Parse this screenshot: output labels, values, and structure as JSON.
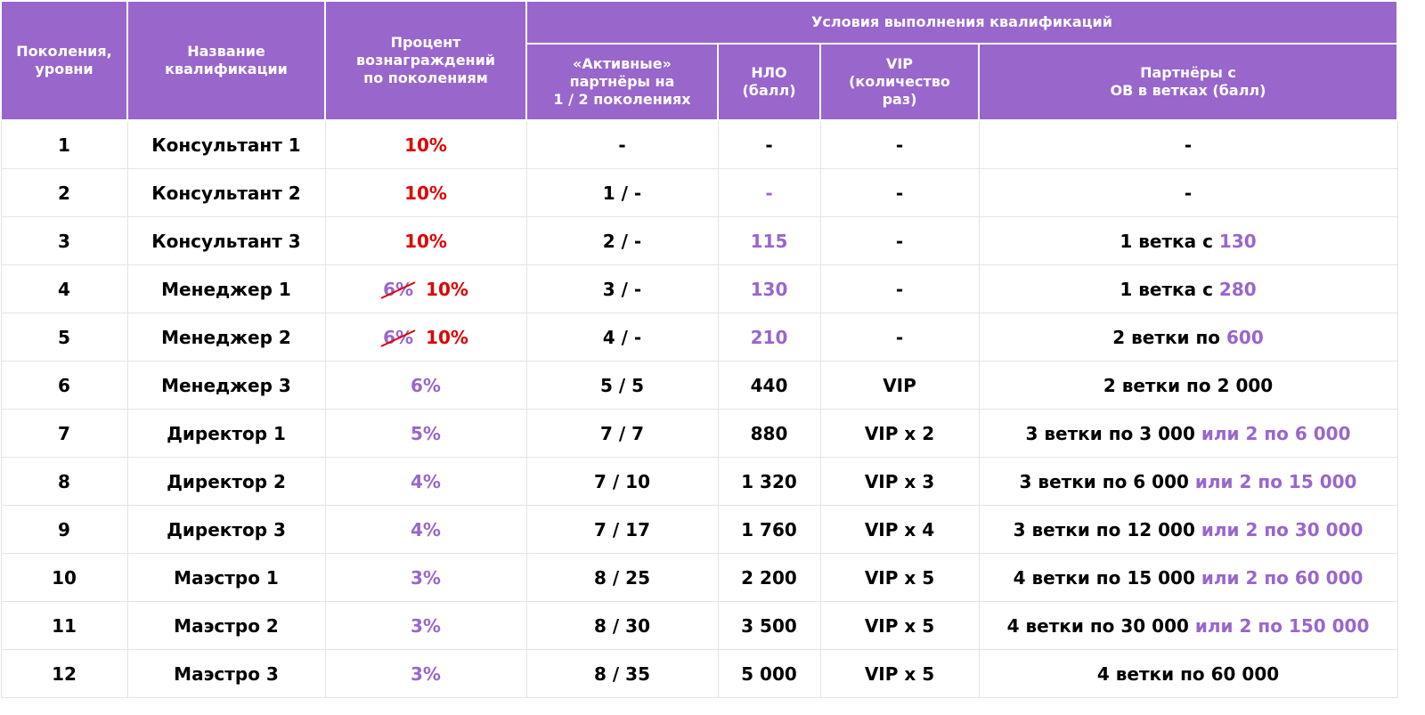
{
  "table": {
    "group_header": "Условия выполнения квалификаций",
    "headers": [
      "Поколения,\nуровни",
      "Название\nквалификации",
      "Процент\nвознаграждений\nпо поколениям",
      "«Активные»\nпартнёры на\n1 / 2 поколениях",
      "НЛО\n(балл)",
      "VIP\n(количество\nраз)",
      "Партнёры с\nОВ в ветках (балл)"
    ],
    "rows": [
      [
        [
          {
            "text": "1",
            "color": "#000000"
          }
        ],
        [
          {
            "text": "Консультант 1",
            "color": "#000000"
          }
        ],
        [
          {
            "text": "10%",
            "color": "#e00000"
          }
        ],
        [
          {
            "text": "-",
            "color": "#000000"
          }
        ],
        [
          {
            "text": "-",
            "color": "#000000"
          }
        ],
        [
          {
            "text": "-",
            "color": "#000000"
          }
        ],
        [
          {
            "text": "-",
            "color": "#000000"
          }
        ]
      ],
      [
        [
          {
            "text": "2",
            "color": "#000000"
          }
        ],
        [
          {
            "text": "Консультант 2",
            "color": "#000000"
          }
        ],
        [
          {
            "text": "10%",
            "color": "#e00000"
          }
        ],
        [
          {
            "text": "1 / -",
            "color": "#000000"
          }
        ],
        [
          {
            "text": "-",
            "color": "#9966cc"
          }
        ],
        [
          {
            "text": "-",
            "color": "#000000"
          }
        ],
        [
          {
            "text": "-",
            "color": "#000000"
          }
        ]
      ],
      [
        [
          {
            "text": "3",
            "color": "#000000"
          }
        ],
        [
          {
            "text": "Консультант 3",
            "color": "#000000"
          }
        ],
        [
          {
            "text": "10%",
            "color": "#e00000"
          }
        ],
        [
          {
            "text": "2 / -",
            "color": "#000000"
          }
        ],
        [
          {
            "text": "115",
            "color": "#9966cc"
          }
        ],
        [
          {
            "text": "-",
            "color": "#000000"
          }
        ],
        [
          {
            "text": "1 ветка с ",
            "color": "#000000"
          },
          {
            "text": "130",
            "color": "#9966cc"
          }
        ]
      ],
      [
        [
          {
            "text": "4",
            "color": "#000000"
          }
        ],
        [
          {
            "text": "Менеджер 1",
            "color": "#000000"
          }
        ],
        [
          {
            "text": "6%",
            "color": "#9966cc",
            "strike": "#e00000"
          },
          {
            "text": "10%",
            "color": "#e00000"
          }
        ],
        [
          {
            "text": "3 / -",
            "color": "#000000"
          }
        ],
        [
          {
            "text": "130",
            "color": "#9966cc"
          }
        ],
        [
          {
            "text": "-",
            "color": "#000000"
          }
        ],
        [
          {
            "text": "1 ветка с ",
            "color": "#000000"
          },
          {
            "text": "280",
            "color": "#9966cc"
          }
        ]
      ],
      [
        [
          {
            "text": "5",
            "color": "#000000"
          }
        ],
        [
          {
            "text": "Менеджер 2",
            "color": "#000000"
          }
        ],
        [
          {
            "text": "6%",
            "color": "#9966cc",
            "strike": "#e00000"
          },
          {
            "text": "10%",
            "color": "#e00000"
          }
        ],
        [
          {
            "text": "4 / -",
            "color": "#000000"
          }
        ],
        [
          {
            "text": "210",
            "color": "#9966cc"
          }
        ],
        [
          {
            "text": "-",
            "color": "#000000"
          }
        ],
        [
          {
            "text": "2 ветки по ",
            "color": "#000000"
          },
          {
            "text": "600",
            "color": "#9966cc"
          }
        ]
      ],
      [
        [
          {
            "text": "6",
            "color": "#000000"
          }
        ],
        [
          {
            "text": "Менеджер 3",
            "color": "#000000"
          }
        ],
        [
          {
            "text": "6%",
            "color": "#9966cc"
          }
        ],
        [
          {
            "text": "5 / 5",
            "color": "#000000"
          }
        ],
        [
          {
            "text": "440",
            "color": "#000000"
          }
        ],
        [
          {
            "text": "VIP",
            "color": "#000000"
          }
        ],
        [
          {
            "text": "2 ветки по 2 000",
            "color": "#000000"
          }
        ]
      ],
      [
        [
          {
            "text": "7",
            "color": "#000000"
          }
        ],
        [
          {
            "text": "Директор 1",
            "color": "#000000"
          }
        ],
        [
          {
            "text": "5%",
            "color": "#9966cc"
          }
        ],
        [
          {
            "text": "7 / 7",
            "color": "#000000"
          }
        ],
        [
          {
            "text": "880",
            "color": "#000000"
          }
        ],
        [
          {
            "text": "VIP x 2",
            "color": "#000000"
          }
        ],
        [
          {
            "text": "3 ветки по 3 000 ",
            "color": "#000000"
          },
          {
            "text": "или 2 по 6 000",
            "color": "#9966cc"
          }
        ]
      ],
      [
        [
          {
            "text": "8",
            "color": "#000000"
          }
        ],
        [
          {
            "text": "Директор 2",
            "color": "#000000"
          }
        ],
        [
          {
            "text": "4%",
            "color": "#9966cc"
          }
        ],
        [
          {
            "text": "7 / 10",
            "color": "#000000"
          }
        ],
        [
          {
            "text": "1 320",
            "color": "#000000"
          }
        ],
        [
          {
            "text": "VIP x 3",
            "color": "#000000"
          }
        ],
        [
          {
            "text": "3 ветки по 6 000 ",
            "color": "#000000"
          },
          {
            "text": "или 2 по 15 000",
            "color": "#9966cc"
          }
        ]
      ],
      [
        [
          {
            "text": "9",
            "color": "#000000"
          }
        ],
        [
          {
            "text": "Директор 3",
            "color": "#000000"
          }
        ],
        [
          {
            "text": "4%",
            "color": "#9966cc"
          }
        ],
        [
          {
            "text": "7 / 17",
            "color": "#000000"
          }
        ],
        [
          {
            "text": "1 760",
            "color": "#000000"
          }
        ],
        [
          {
            "text": "VIP x 4",
            "color": "#000000"
          }
        ],
        [
          {
            "text": "3 ветки по 12 000 ",
            "color": "#000000"
          },
          {
            "text": "или 2 по 30 000",
            "color": "#9966cc"
          }
        ]
      ],
      [
        [
          {
            "text": "10",
            "color": "#000000"
          }
        ],
        [
          {
            "text": "Маэстро 1",
            "color": "#000000"
          }
        ],
        [
          {
            "text": "3%",
            "color": "#9966cc"
          }
        ],
        [
          {
            "text": "8 / 25",
            "color": "#000000"
          }
        ],
        [
          {
            "text": "2 200",
            "color": "#000000"
          }
        ],
        [
          {
            "text": "VIP x 5",
            "color": "#000000"
          }
        ],
        [
          {
            "text": "4 ветки по 15 000 ",
            "color": "#000000"
          },
          {
            "text": "или 2 по 60 000",
            "color": "#9966cc"
          }
        ]
      ],
      [
        [
          {
            "text": "11",
            "color": "#000000"
          }
        ],
        [
          {
            "text": "Маэстро 2",
            "color": "#000000"
          }
        ],
        [
          {
            "text": "3%",
            "color": "#9966cc"
          }
        ],
        [
          {
            "text": "8 / 30",
            "color": "#000000"
          }
        ],
        [
          {
            "text": "3 500",
            "color": "#000000"
          }
        ],
        [
          {
            "text": "VIP x 5",
            "color": "#000000"
          }
        ],
        [
          {
            "text": "4 ветки по 30 000 ",
            "color": "#000000"
          },
          {
            "text": "или 2 по 150 000",
            "color": "#9966cc"
          }
        ]
      ],
      [
        [
          {
            "text": "12",
            "color": "#000000"
          }
        ],
        [
          {
            "text": "Маэстро 3",
            "color": "#000000"
          }
        ],
        [
          {
            "text": "3%",
            "color": "#9966cc"
          }
        ],
        [
          {
            "text": "8 / 35",
            "color": "#000000"
          }
        ],
        [
          {
            "text": "5 000",
            "color": "#000000"
          }
        ],
        [
          {
            "text": "VIP x 5",
            "color": "#000000"
          }
        ],
        [
          {
            "text": "4 ветки по 60 000",
            "color": "#000000"
          }
        ]
      ]
    ]
  }
}
